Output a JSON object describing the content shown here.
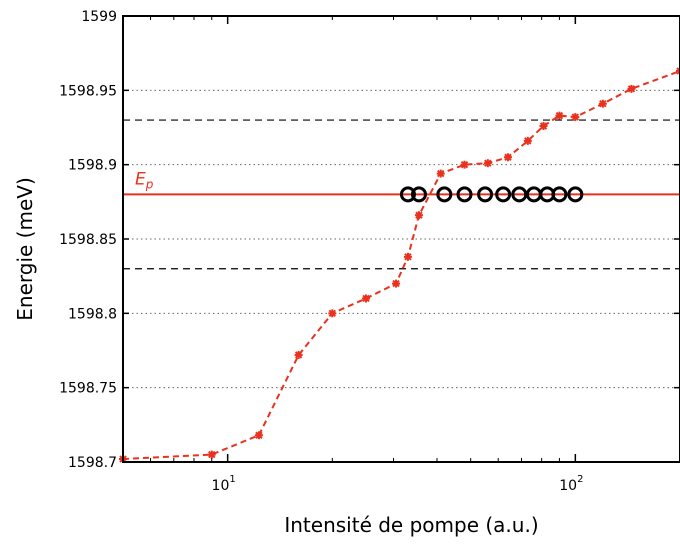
{
  "chart_data": {
    "type": "scatter",
    "title": "",
    "xlabel": "Intensité de pompe (a.u.)",
    "ylabel": "Energie (meV)",
    "xscale": "log",
    "xlim": [
      5,
      200
    ],
    "ylim": [
      1598.7,
      1599
    ],
    "grid": "horizontal dotted",
    "x_ticks": [
      {
        "value": 10,
        "base": "10",
        "exp": "1"
      },
      {
        "value": 100,
        "base": "10",
        "exp": "2"
      }
    ],
    "y_ticks": [
      {
        "value": 1598.7,
        "label": "1598.7"
      },
      {
        "value": 1598.75,
        "label": "1598.75"
      },
      {
        "value": 1598.8,
        "label": "1598.8"
      },
      {
        "value": 1598.85,
        "label": "1598.85"
      },
      {
        "value": 1598.9,
        "label": "1598.9"
      },
      {
        "value": 1598.95,
        "label": "1598.95"
      },
      {
        "value": 1599,
        "label": "1599"
      }
    ],
    "reference_lines": [
      {
        "y": 1598.88,
        "style": "solid",
        "color": "#e8321e",
        "label": "E",
        "label_sub": "p"
      },
      {
        "y": 1598.93,
        "style": "dashed",
        "color": "#000000"
      },
      {
        "y": 1598.83,
        "style": "dashed",
        "color": "#000000"
      }
    ],
    "series": [
      {
        "marker": "asterisk",
        "line": "dashed",
        "color": "#e8321e",
        "points": [
          [
            5,
            1598.702
          ],
          [
            9,
            1598.705
          ],
          [
            12.3,
            1598.718
          ],
          [
            16,
            1598.772
          ],
          [
            20,
            1598.8
          ],
          [
            25,
            1598.81
          ],
          [
            30.5,
            1598.82
          ],
          [
            33,
            1598.838
          ],
          [
            35.5,
            1598.866
          ],
          [
            41,
            1598.894
          ],
          [
            48,
            1598.9
          ],
          [
            56,
            1598.901
          ],
          [
            64,
            1598.905
          ],
          [
            73,
            1598.916
          ],
          [
            81,
            1598.926
          ],
          [
            90,
            1598.933
          ],
          [
            100,
            1598.932
          ],
          [
            120,
            1598.941
          ],
          [
            145,
            1598.951
          ],
          [
            200,
            1598.963
          ]
        ]
      },
      {
        "marker": "circle",
        "line": "none",
        "color": "#000000",
        "points": [
          [
            33,
            1598.88
          ],
          [
            35.5,
            1598.88
          ],
          [
            42,
            1598.88
          ],
          [
            48,
            1598.88
          ],
          [
            55,
            1598.88
          ],
          [
            62,
            1598.88
          ],
          [
            69,
            1598.88
          ],
          [
            76,
            1598.88
          ],
          [
            83,
            1598.88
          ],
          [
            90,
            1598.88
          ],
          [
            100,
            1598.88
          ]
        ]
      }
    ]
  }
}
